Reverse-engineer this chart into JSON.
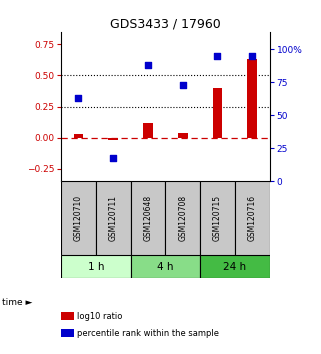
{
  "title": "GDS3433 / 17960",
  "samples": [
    "GSM120710",
    "GSM120711",
    "GSM120648",
    "GSM120708",
    "GSM120715",
    "GSM120716"
  ],
  "log10_ratio": [
    0.03,
    -0.02,
    0.12,
    0.04,
    0.4,
    0.63
  ],
  "percentile_rank": [
    63,
    18,
    88,
    73,
    95,
    95
  ],
  "groups": [
    {
      "label": "1 h",
      "indices": [
        0,
        1
      ],
      "color": "#ccffcc"
    },
    {
      "label": "4 h",
      "indices": [
        2,
        3
      ],
      "color": "#88dd88"
    },
    {
      "label": "24 h",
      "indices": [
        4,
        5
      ],
      "color": "#44bb44"
    }
  ],
  "bar_color": "#cc0000",
  "dot_color": "#0000cc",
  "ylim_left": [
    -0.35,
    0.85
  ],
  "ylim_right": [
    0,
    113.33
  ],
  "yticks_left": [
    -0.25,
    0.0,
    0.25,
    0.5,
    0.75
  ],
  "yticks_right": [
    0,
    25,
    50,
    75,
    100
  ],
  "hlines": [
    0.5,
    0.25
  ],
  "dashed_zero": 0.0,
  "legend_items": [
    "log10 ratio",
    "percentile rank within the sample"
  ],
  "legend_colors": [
    "#cc0000",
    "#0000cc"
  ],
  "group_line_color": "#000000",
  "sample_box_color": "#c8c8c8"
}
